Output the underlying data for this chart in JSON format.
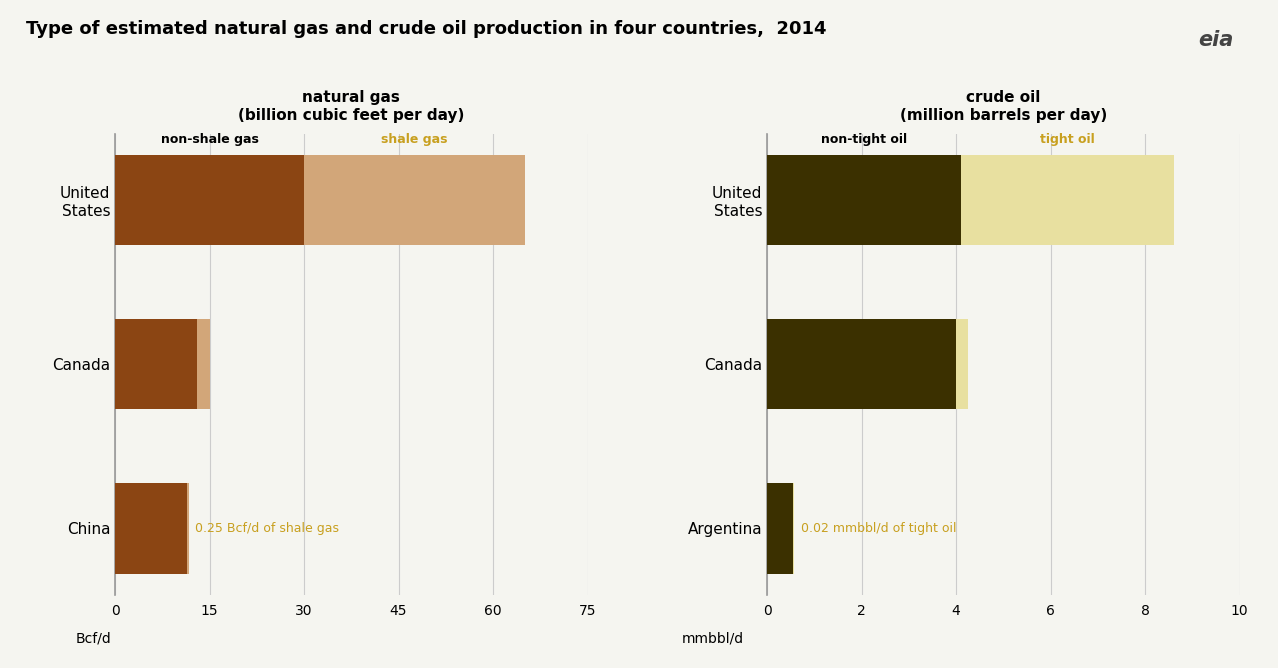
{
  "title": "Type of estimated natural gas and crude oil production in four countries,  2014",
  "title_fontsize": 13,
  "left_title": "natural gas",
  "left_subtitle": "(billion cubic feet per day)",
  "right_title": "crude oil",
  "right_subtitle": "(million barrels per day)",
  "gas_categories": [
    "China",
    "Canada",
    "United\nStates"
  ],
  "gas_non_shale": [
    11.5,
    13.0,
    30.0
  ],
  "gas_shale": [
    0.25,
    2.0,
    35.0
  ],
  "gas_xlim": [
    0,
    75
  ],
  "gas_xticks": [
    0,
    15,
    30,
    45,
    60,
    75
  ],
  "gas_xlabel": "Bcf/d",
  "oil_categories": [
    "Argentina",
    "Canada",
    "United\nStates"
  ],
  "oil_non_tight": [
    0.55,
    4.0,
    4.1
  ],
  "oil_tight": [
    0.02,
    0.25,
    4.5
  ],
  "oil_xlim": [
    0,
    10
  ],
  "oil_xticks": [
    0,
    2,
    4,
    6,
    8,
    10
  ],
  "oil_xlabel": "mmbbl/d",
  "color_non_shale": "#8B4513",
  "color_shale": "#D2A679",
  "color_non_tight": "#3B3000",
  "color_tight": "#E8E0A0",
  "annotation_gas_china": "0.25 Bcf/d of shale gas",
  "annotation_oil_argentina": "0.02 mmbbl/d of tight oil",
  "annotation_color": "#C8A020",
  "label_non_shale": "non-shale gas",
  "label_shale": "shale gas",
  "label_non_tight": "non-tight oil",
  "label_tight": "tight oil",
  "bg_color": "#F5F5F0",
  "grid_color": "#CCCCCC",
  "bar_height": 0.55
}
